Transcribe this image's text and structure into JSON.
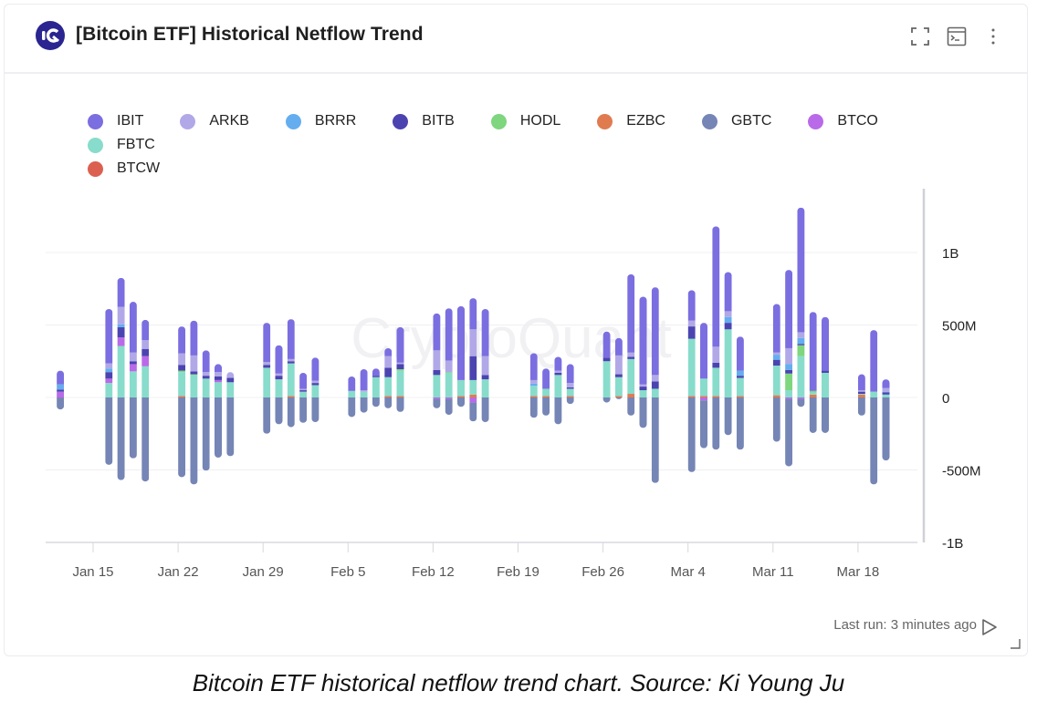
{
  "header": {
    "title": "[Bitcoin ETF] Historical Netflow Trend",
    "logo_icon": "cryptoquant-logo",
    "actions": [
      {
        "name": "fullscreen-icon"
      },
      {
        "name": "terminal-icon"
      },
      {
        "name": "more-vertical-icon"
      }
    ]
  },
  "watermark": "CryptoQuant",
  "footer": {
    "last_run": "Last run: 3 minutes ago",
    "run_icon": "play-icon"
  },
  "caption": "Bitcoin ETF historical netflow trend chart. Source: Ki Young Ju",
  "chart_data": {
    "type": "bar",
    "stacked": true,
    "grid": true,
    "legend_position": "top-left",
    "ylim": [
      -1000000000,
      1500000000
    ],
    "y_ticks": [
      {
        "value": 1000000000,
        "label": "1B"
      },
      {
        "value": 500000000,
        "label": "500M"
      },
      {
        "value": 0,
        "label": "0"
      },
      {
        "value": -500000000,
        "label": "-500M"
      },
      {
        "value": -1000000000,
        "label": "-1B"
      }
    ],
    "x_ticks": [
      {
        "date": "2024-01-15",
        "label": "Jan 15"
      },
      {
        "date": "2024-01-22",
        "label": "Jan 22"
      },
      {
        "date": "2024-01-29",
        "label": "Jan 29"
      },
      {
        "date": "2024-02-05",
        "label": "Feb 5"
      },
      {
        "date": "2024-02-12",
        "label": "Feb 12"
      },
      {
        "date": "2024-02-19",
        "label": "Feb 19"
      },
      {
        "date": "2024-02-26",
        "label": "Feb 26"
      },
      {
        "date": "2024-03-04",
        "label": "Mar 4"
      },
      {
        "date": "2024-03-11",
        "label": "Mar 11"
      },
      {
        "date": "2024-03-18",
        "label": "Mar 18"
      }
    ],
    "series": [
      {
        "name": "IBIT",
        "color": "#7b6ee0"
      },
      {
        "name": "ARKB",
        "color": "#b1a8e8"
      },
      {
        "name": "BRRR",
        "color": "#64aef0"
      },
      {
        "name": "BITB",
        "color": "#4b44b0"
      },
      {
        "name": "HODL",
        "color": "#7ed67e"
      },
      {
        "name": "EZBC",
        "color": "#e07b50"
      },
      {
        "name": "GBTC",
        "color": "#7585b5"
      },
      {
        "name": "BTCO",
        "color": "#b96ae8"
      },
      {
        "name": "FBTC",
        "color": "#88dccb"
      },
      {
        "name": "BTCW",
        "color": "#dc6050"
      }
    ],
    "unit": "USD millions",
    "categories": [
      "2024-01-12",
      "2024-01-16",
      "2024-01-17",
      "2024-01-18",
      "2024-01-19",
      "2024-01-22",
      "2024-01-23",
      "2024-01-24",
      "2024-01-25",
      "2024-01-26",
      "2024-01-29",
      "2024-01-30",
      "2024-01-31",
      "2024-02-01",
      "2024-02-02",
      "2024-02-05",
      "2024-02-06",
      "2024-02-07",
      "2024-02-08",
      "2024-02-09",
      "2024-02-12",
      "2024-02-13",
      "2024-02-14",
      "2024-02-15",
      "2024-02-16",
      "2024-02-20",
      "2024-02-21",
      "2024-02-22",
      "2024-02-23",
      "2024-02-26",
      "2024-02-27",
      "2024-02-28",
      "2024-02-29",
      "2024-03-01",
      "2024-03-04",
      "2024-03-05",
      "2024-03-06",
      "2024-03-07",
      "2024-03-08",
      "2024-03-11",
      "2024-03-12",
      "2024-03-13",
      "2024-03-14",
      "2024-03-15",
      "2024-03-18",
      "2024-03-19",
      "2024-03-20"
    ],
    "values_by_category": [
      [
        95,
        0,
        35,
        15,
        0,
        0,
        -83,
        40,
        0,
        0
      ],
      [
        375,
        35,
        25,
        45,
        0,
        0,
        -465,
        30,
        100,
        0
      ],
      [
        200,
        120,
        20,
        70,
        0,
        0,
        -570,
        60,
        355,
        0
      ],
      [
        350,
        60,
        0,
        20,
        0,
        0,
        -420,
        50,
        180,
        0
      ],
      [
        140,
        60,
        0,
        50,
        0,
        0,
        -580,
        70,
        215,
        0
      ],
      [
        185,
        80,
        0,
        40,
        10,
        10,
        -550,
        0,
        165,
        0
      ],
      [
        240,
        110,
        0,
        20,
        5,
        0,
        -600,
        0,
        155,
        0
      ],
      [
        150,
        25,
        0,
        20,
        0,
        0,
        -505,
        0,
        130,
        0
      ],
      [
        55,
        30,
        0,
        25,
        0,
        0,
        -415,
        15,
        105,
        0
      ],
      [
        0,
        40,
        0,
        30,
        0,
        0,
        -405,
        0,
        105,
        0
      ],
      [
        270,
        20,
        0,
        20,
        0,
        0,
        -250,
        0,
        205,
        0
      ],
      [
        195,
        15,
        0,
        25,
        0,
        0,
        -185,
        0,
        125,
        0
      ],
      [
        275,
        15,
        0,
        15,
        0,
        10,
        -205,
        0,
        225,
        0
      ],
      [
        110,
        10,
        0,
        10,
        0,
        0,
        -175,
        0,
        40,
        0
      ],
      [
        160,
        15,
        0,
        15,
        0,
        0,
        -170,
        0,
        85,
        0
      ],
      [
        100,
        0,
        0,
        0,
        0,
        0,
        -135,
        0,
        45,
        0
      ],
      [
        145,
        10,
        0,
        0,
        0,
        0,
        -105,
        0,
        40,
        0
      ],
      [
        50,
        0,
        0,
        10,
        0,
        0,
        -65,
        0,
        140,
        0
      ],
      [
        55,
        80,
        0,
        65,
        0,
        10,
        -75,
        0,
        130,
        0
      ],
      [
        245,
        10,
        0,
        35,
        10,
        10,
        -100,
        0,
        175,
        0
      ],
      [
        255,
        135,
        0,
        35,
        0,
        0,
        -65,
        -10,
        155,
        0
      ],
      [
        360,
        80,
        0,
        0,
        5,
        0,
        -110,
        -10,
        170,
        0
      ],
      [
        510,
        0,
        0,
        0,
        0,
        10,
        -65,
        0,
        110,
        0
      ],
      [
        215,
        185,
        0,
        165,
        0,
        20,
        -130,
        -35,
        100,
        0
      ],
      [
        325,
        130,
        0,
        30,
        0,
        0,
        -170,
        0,
        125,
        0
      ],
      [
        185,
        25,
        15,
        0,
        0,
        10,
        -140,
        0,
        70,
        0
      ],
      [
        140,
        0,
        0,
        0,
        0,
        10,
        -125,
        0,
        50,
        0
      ],
      [
        95,
        15,
        0,
        15,
        0,
        0,
        -185,
        0,
        155,
        0
      ],
      [
        130,
        30,
        0,
        10,
        0,
        10,
        -45,
        0,
        50,
        0
      ],
      [
        180,
        0,
        0,
        25,
        0,
        0,
        -35,
        0,
        250,
        0
      ],
      [
        120,
        130,
        0,
        20,
        0,
        10,
        -12,
        0,
        130,
        0
      ],
      [
        540,
        30,
        0,
        15,
        0,
        25,
        -125,
        0,
        240,
        0
      ],
      [
        605,
        15,
        0,
        25,
        0,
        0,
        -210,
        0,
        50,
        0
      ],
      [
        605,
        45,
        0,
        50,
        0,
        0,
        -590,
        0,
        60,
        0
      ],
      [
        210,
        40,
        0,
        85,
        0,
        10,
        -515,
        0,
        395,
        0
      ],
      [
        385,
        0,
        0,
        0,
        0,
        10,
        -330,
        -20,
        120,
        0
      ],
      [
        830,
        110,
        0,
        35,
        0,
        10,
        -360,
        0,
        195,
        0
      ],
      [
        270,
        40,
        40,
        45,
        0,
        0,
        -260,
        0,
        470,
        0
      ],
      [
        235,
        0,
        35,
        15,
        0,
        10,
        -360,
        0,
        125,
        0
      ],
      [
        335,
        15,
        35,
        40,
        0,
        15,
        -305,
        0,
        205,
        0
      ],
      [
        540,
        110,
        40,
        25,
        115,
        0,
        -465,
        -10,
        50,
        0
      ],
      [
        860,
        40,
        40,
        10,
        75,
        0,
        -55,
        -10,
        285,
        0
      ],
      [
        545,
        0,
        0,
        0,
        10,
        20,
        -245,
        0,
        15,
        0
      ],
      [
        370,
        0,
        0,
        15,
        0,
        0,
        -245,
        0,
        170,
        0
      ],
      [
        110,
        10,
        0,
        15,
        0,
        20,
        -125,
        0,
        5,
        0
      ],
      [
        425,
        0,
        0,
        0,
        0,
        0,
        -600,
        0,
        40,
        0
      ],
      [
        60,
        25,
        5,
        15,
        0,
        0,
        -435,
        0,
        20,
        0
      ]
    ]
  }
}
